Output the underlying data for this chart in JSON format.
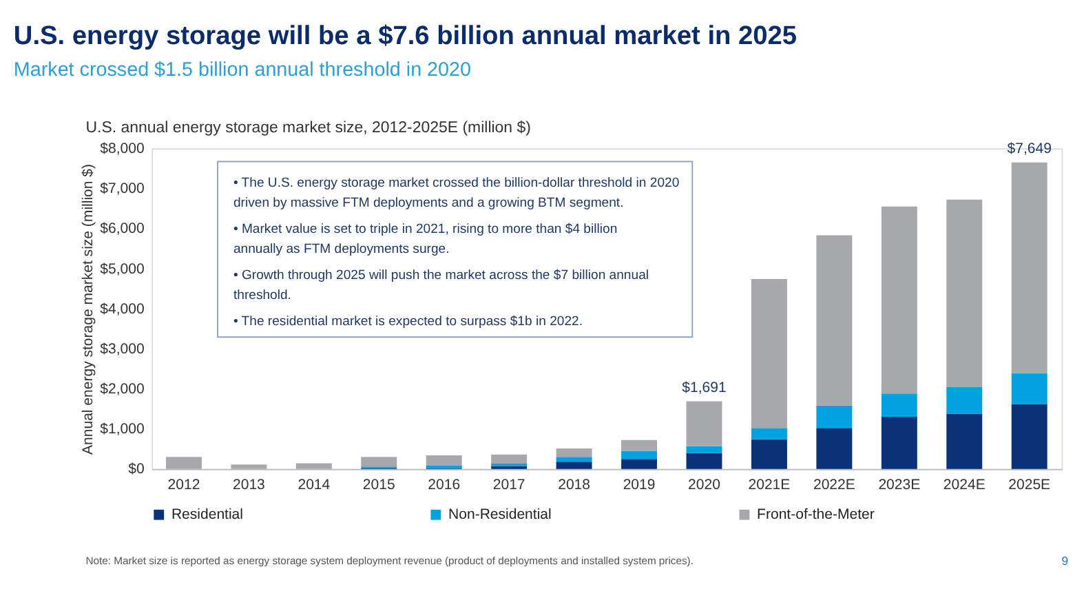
{
  "chart_data": {
    "type": "bar",
    "stacked": true,
    "title": "U.S. energy storage will be a $7.6 billion annual market in 2025",
    "subtitle": "Market crossed $1.5 billion annual threshold in 2020",
    "ylabel": "Annual energy storage market size (million $)",
    "categories": [
      "2012",
      "2013",
      "2014",
      "2015",
      "2016",
      "2017",
      "2018",
      "2019",
      "2020",
      "2021E",
      "2022E",
      "2023E",
      "2024E",
      "2025E"
    ],
    "series": [
      {
        "name": "Residential",
        "color": "#0a3278",
        "values": [
          0,
          0,
          0,
          10,
          20,
          70,
          180,
          250,
          400,
          740,
          1020,
          1300,
          1380,
          1620
        ]
      },
      {
        "name": "Non-Residential",
        "color": "#00a3e0",
        "values": [
          0,
          0,
          0,
          50,
          60,
          60,
          120,
          200,
          170,
          280,
          560,
          580,
          660,
          770
        ]
      },
      {
        "name": "Front-of-the-Meter",
        "color": "#a6a8ab",
        "values": [
          300,
          110,
          140,
          240,
          260,
          230,
          210,
          270,
          1120,
          3720,
          4250,
          4670,
          4680,
          5260
        ]
      }
    ],
    "totals": [
      null,
      null,
      null,
      null,
      null,
      null,
      null,
      null,
      "$1,691",
      null,
      null,
      null,
      null,
      "$7,649"
    ],
    "ylim": [
      0,
      8000
    ],
    "yticks": [
      {
        "value": 0,
        "label": "$0"
      },
      {
        "value": 1000,
        "label": "$1,000"
      },
      {
        "value": 2000,
        "label": "$2,000"
      },
      {
        "value": 3000,
        "label": "$3,000"
      },
      {
        "value": 4000,
        "label": "$4,000"
      },
      {
        "value": 5000,
        "label": "$5,000"
      },
      {
        "value": 6000,
        "label": "$6,000"
      },
      {
        "value": 7000,
        "label": "$7,000"
      },
      {
        "value": 8000,
        "label": "$8,000"
      }
    ],
    "grid": false,
    "legend": "bottom",
    "annotations": [
      "U.S. annual energy storage market size, 2012-2025E (million $)",
      "• The U.S. energy storage market crossed the billion-dollar threshold in 2020 driven by massive FTM deployments and a growing BTM segment.",
      "• Market value is set to triple in 2021, rising to more than $4 billion annually as FTM deployments surge.",
      "• Growth through 2025 will push the market across the $7 billion annual threshold.",
      "• The residential market is expected to surpass $1b in 2022.",
      "Note: Market size is reported as energy storage system deployment revenue (product of deployments and installed system prices).",
      "9"
    ]
  }
}
